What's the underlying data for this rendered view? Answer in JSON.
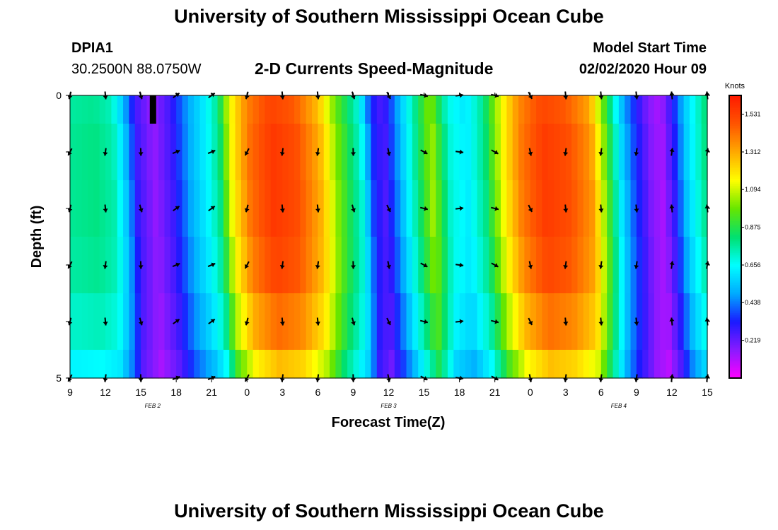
{
  "page": {
    "title_top": "University of Southern Mississippi Ocean Cube",
    "title_bottom": "University of Southern Mississippi Ocean Cube"
  },
  "station": {
    "id": "DPIA1",
    "coords": "30.2500N 88.0750W"
  },
  "plot_title": "2-D Currents Speed-Magnitude",
  "model": {
    "label": "Model Start Time",
    "value": "02/02/2020 Hour 09"
  },
  "colors": {
    "scale": [
      "#ff00ff",
      "#8a1aff",
      "#1a1aff",
      "#00aaff",
      "#00ffff",
      "#00e070",
      "#66e600",
      "#ffff00",
      "#ffaa00",
      "#ff5500",
      "#ff1a00"
    ]
  },
  "chart_data": {
    "type": "heatmap",
    "title": "2-D Currents Speed-Magnitude",
    "xlabel": "Forecast Time(Z)",
    "ylabel": "Depth (ft)",
    "x_ticks": [
      "9",
      "12",
      "15",
      "18",
      "21",
      "0",
      "3",
      "6",
      "9",
      "12",
      "15",
      "18",
      "21",
      "0",
      "3",
      "6",
      "9",
      "12",
      "15"
    ],
    "x_range": [
      0,
      54
    ],
    "date_labels": [
      {
        "text": "FEB 2",
        "hour": 7
      },
      {
        "text": "FEB 3",
        "hour": 27
      },
      {
        "text": "FEB 4",
        "hour": 46.5
      }
    ],
    "y_ticks": [
      {
        "label": "0",
        "depth": 0
      },
      {
        "label": "",
        "depth": 1
      },
      {
        "label": "",
        "depth": 2
      },
      {
        "label": "",
        "depth": 3
      },
      {
        "label": "",
        "depth": 4
      },
      {
        "label": "5",
        "depth": 5
      }
    ],
    "y_range": [
      0,
      5
    ],
    "colorbar": {
      "unit": "Knots",
      "range": [
        0.0,
        1.64
      ],
      "ticks": [
        1.531,
        1.312,
        1.094,
        0.875,
        0.656,
        0.438,
        0.219
      ]
    },
    "depth_scale": [
      0.98,
      1.0,
      1.0,
      0.98,
      0.92,
      0.82
    ],
    "surface_profile": [
      {
        "h": 0,
        "v": 0.78
      },
      {
        "h": 2,
        "v": 0.8
      },
      {
        "h": 3.5,
        "v": 0.75
      },
      {
        "h": 4.5,
        "v": 0.55
      },
      {
        "h": 5.5,
        "v": 0.28
      },
      {
        "h": 7,
        "v": 0.15
      },
      {
        "h": 8.5,
        "v": 0.28
      },
      {
        "h": 10,
        "v": 0.5
      },
      {
        "h": 11.5,
        "v": 0.65
      },
      {
        "h": 12.5,
        "v": 0.8
      },
      {
        "h": 13.5,
        "v": 1.15
      },
      {
        "h": 15,
        "v": 1.42
      },
      {
        "h": 17,
        "v": 1.56
      },
      {
        "h": 19,
        "v": 1.5
      },
      {
        "h": 21,
        "v": 1.3
      },
      {
        "h": 22.5,
        "v": 1.0
      },
      {
        "h": 24.5,
        "v": 0.7
      },
      {
        "h": 25.5,
        "v": 0.35
      },
      {
        "h": 26.5,
        "v": 0.25
      },
      {
        "h": 28,
        "v": 0.55
      },
      {
        "h": 29,
        "v": 0.75
      },
      {
        "h": 30.5,
        "v": 1.05
      },
      {
        "h": 32,
        "v": 0.7
      },
      {
        "h": 33.5,
        "v": 0.62
      },
      {
        "h": 35,
        "v": 0.8
      },
      {
        "h": 36.5,
        "v": 1.15
      },
      {
        "h": 38,
        "v": 1.4
      },
      {
        "h": 40,
        "v": 1.55
      },
      {
        "h": 42,
        "v": 1.5
      },
      {
        "h": 44,
        "v": 1.35
      },
      {
        "h": 45,
        "v": 1.05
      },
      {
        "h": 46.5,
        "v": 0.6
      },
      {
        "h": 47.5,
        "v": 0.4
      },
      {
        "h": 49,
        "v": 0.18
      },
      {
        "h": 50,
        "v": 0.12
      },
      {
        "h": 51,
        "v": 0.3
      },
      {
        "h": 52,
        "v": 0.55
      },
      {
        "h": 54,
        "v": 0.85
      }
    ],
    "missing_cell": {
      "hour": 7,
      "depth_from": 0,
      "depth_to": 0.5
    },
    "vectors": {
      "hours": [
        0,
        3,
        6,
        9,
        12,
        15,
        18,
        21,
        24,
        27,
        30,
        33,
        36,
        39,
        42,
        45,
        48,
        51,
        54
      ],
      "depths": [
        0,
        1,
        2,
        3,
        4,
        5
      ],
      "direction_deg_by_hour": [
        200,
        180,
        170,
        60,
        60,
        200,
        180,
        180,
        170,
        160,
        110,
        90,
        110,
        160,
        180,
        180,
        180,
        0,
        0
      ]
    }
  }
}
